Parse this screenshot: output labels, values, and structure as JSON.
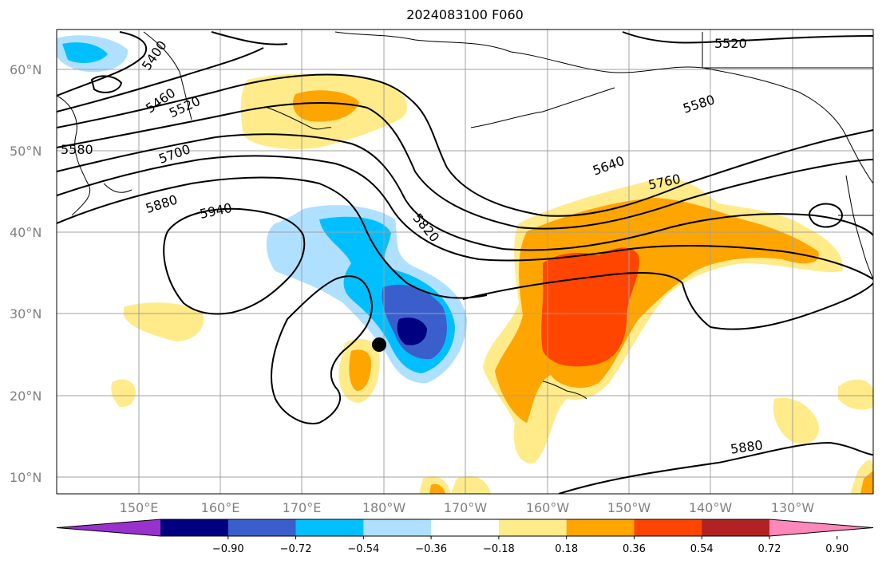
{
  "title": "2024083100 F060",
  "lat_labels": [
    "60°N",
    "50°N",
    "40°N",
    "30°N",
    "20°N",
    "10°N"
  ],
  "lon_labels": [
    "150°E",
    "160°E",
    "170°E",
    "180°W",
    "170°W",
    "160°W",
    "150°W",
    "140°W",
    "130°W"
  ],
  "colorbar": {
    "colors": [
      "#9932cc",
      "#000080",
      "#3a5fcd",
      "#00bfff",
      "#b0e0ff",
      "#ffffff",
      "#ffeb8a",
      "#ffa500",
      "#ff4500",
      "#b22222",
      "#ff88bb"
    ],
    "tick_labels": [
      "−0.90",
      "−0.72",
      "−0.54",
      "−0.36",
      "−0.18",
      "0.18",
      "0.36",
      "0.54",
      "0.72",
      "0.90"
    ]
  },
  "contour_labels": [
    "5520",
    "5400",
    "5460",
    "5520",
    "5580",
    "5700",
    "5880",
    "5940",
    "5820",
    "5640",
    "5580",
    "5760",
    "5880"
  ],
  "marker": "storm-center-dot"
}
